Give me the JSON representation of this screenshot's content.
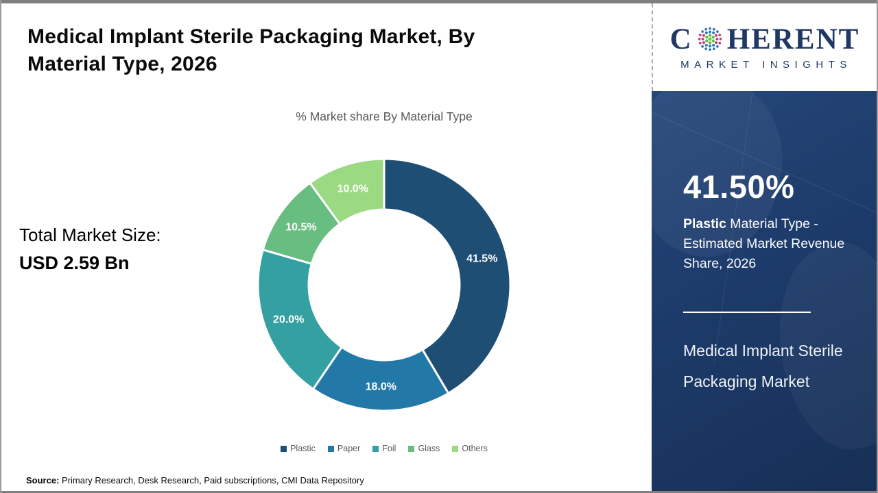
{
  "header": {
    "title_line1": "Medical Implant Sterile Packaging Market, By",
    "title_line2": "Material Type, 2026"
  },
  "logo": {
    "brand_start": "C",
    "brand_end": "HERENT",
    "brand_sub": "MARKET INSIGHTS",
    "navy": "#1f3864",
    "dot_blue": "#2e74b5",
    "dot_green": "#62bb46",
    "dot_magenta": "#c13a83"
  },
  "left_panel": {
    "total_label": "Total Market Size:",
    "total_value": "USD 2.59 Bn"
  },
  "chart_data": {
    "type": "pie",
    "subtype": "donut",
    "title": "% Market share By Material Type",
    "categories": [
      "Plastic",
      "Paper",
      "Foil",
      "Glass",
      "Others"
    ],
    "values": [
      41.5,
      18.0,
      20.0,
      10.5,
      10.0
    ],
    "value_labels": [
      "41.5%",
      "18.0%",
      "20.0%",
      "10.5%",
      "10.0%"
    ],
    "colors": [
      "#1f4e74",
      "#2279a8",
      "#35a0a2",
      "#68bd80",
      "#9cd983"
    ],
    "start_angle_deg": 0,
    "direction": "clockwise",
    "legend_position": "bottom",
    "label_color": "#ffffff"
  },
  "sidebar": {
    "background": "#1d3b6a",
    "highlight_value": "41.50%",
    "caption_bold": "Plastic",
    "caption_rest": " Material Type - Estimated Market Revenue Share, 2026",
    "market_name": "Medical Implant Sterile Packaging Market"
  },
  "footer": {
    "source_label": "Source:",
    "source_text": " Primary Research, Desk Research, Paid subscriptions, CMI Data Repository"
  }
}
